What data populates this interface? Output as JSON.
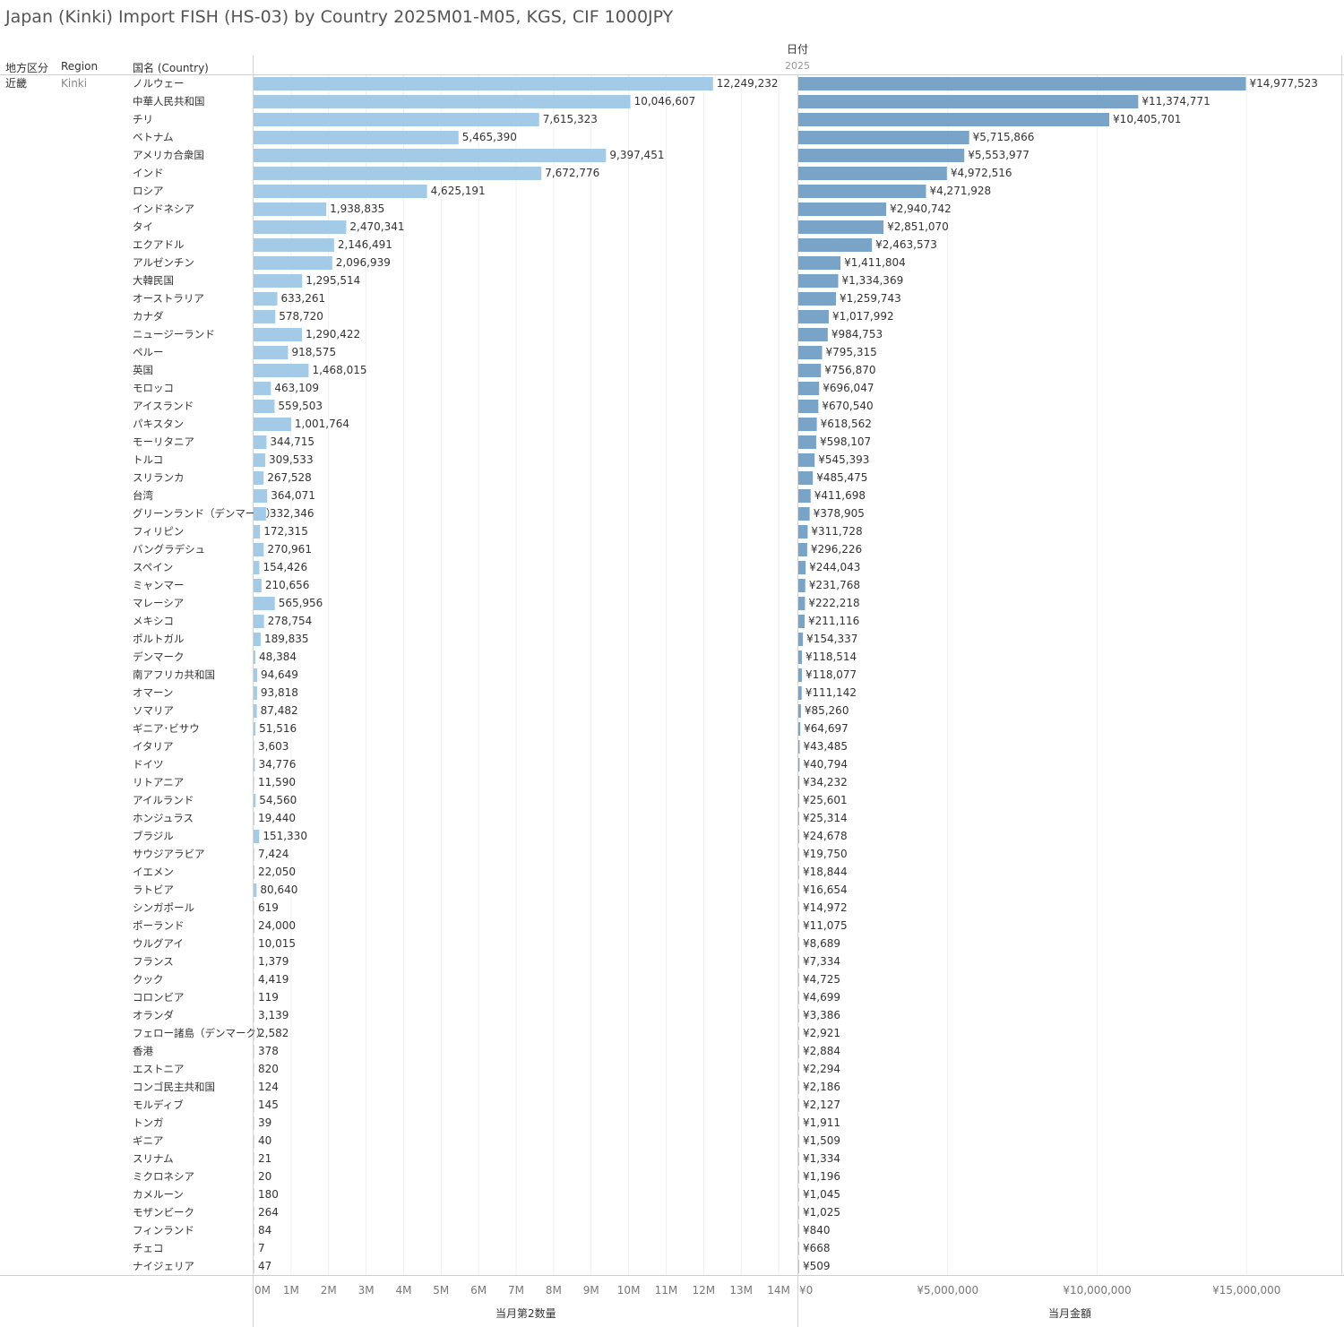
{
  "title": "Japan (Kinki) Import FISH (HS-03) by Country 2025M01-M05, KGS, CIF 1000JPY",
  "headers": {
    "date": "日付",
    "year": "2025",
    "col_region_jp": "地方区分",
    "col_region": "Region",
    "col_country": "国名 (Country)"
  },
  "row_group": {
    "region_jp": "近畿",
    "region": "Kinki"
  },
  "chart_data": [
    {
      "type": "bar",
      "orientation": "horizontal",
      "xlabel": "当月第2数量",
      "xlim": [
        0,
        14500000
      ],
      "ticks": [
        {
          "v": 0,
          "label": "0M"
        },
        {
          "v": 1000000,
          "label": "1M"
        },
        {
          "v": 2000000,
          "label": "2M"
        },
        {
          "v": 3000000,
          "label": "3M"
        },
        {
          "v": 4000000,
          "label": "4M"
        },
        {
          "v": 5000000,
          "label": "5M"
        },
        {
          "v": 6000000,
          "label": "6M"
        },
        {
          "v": 7000000,
          "label": "7M"
        },
        {
          "v": 8000000,
          "label": "8M"
        },
        {
          "v": 9000000,
          "label": "9M"
        },
        {
          "v": 10000000,
          "label": "10M"
        },
        {
          "v": 11000000,
          "label": "11M"
        },
        {
          "v": 12000000,
          "label": "12M"
        },
        {
          "v": 13000000,
          "label": "13M"
        },
        {
          "v": 14000000,
          "label": "14M"
        }
      ],
      "color": "#a3cbe8",
      "categories": [
        "ノルウェー",
        "中華人民共和国",
        "チリ",
        "ベトナム",
        "アメリカ合衆国",
        "インド",
        "ロシア",
        "インドネシア",
        "タイ",
        "エクアドル",
        "アルゼンチン",
        "大韓民国",
        "オーストラリア",
        "カナダ",
        "ニュージーランド",
        "ペルー",
        "英国",
        "モロッコ",
        "アイスランド",
        "パキスタン",
        "モーリタニア",
        "トルコ",
        "スリランカ",
        "台湾",
        "グリーンランド（デンマーク）",
        "フィリピン",
        "バングラデシュ",
        "スペイン",
        "ミャンマー",
        "マレーシア",
        "メキシコ",
        "ポルトガル",
        "デンマーク",
        "南アフリカ共和国",
        "オマーン",
        "ソマリア",
        "ギニア･ビサウ",
        "イタリア",
        "ドイツ",
        "リトアニア",
        "アイルランド",
        "ホンジュラス",
        "ブラジル",
        "サウジアラビア",
        "イエメン",
        "ラトビア",
        "シンガポール",
        "ポーランド",
        "ウルグアイ",
        "フランス",
        "クック",
        "コロンビア",
        "オランダ",
        "フェロー諸島（デンマーク）",
        "香港",
        "エストニア",
        "コンゴ民主共和国",
        "モルディブ",
        "トンガ",
        "ギニア",
        "スリナム",
        "ミクロネシア",
        "カメルーン",
        "モザンビーク",
        "フィンランド",
        "チェコ",
        "ナイジェリア"
      ],
      "values": [
        12249232,
        10046607,
        7615323,
        5465390,
        9397451,
        7672776,
        4625191,
        1938835,
        2470341,
        2146491,
        2096939,
        1295514,
        633261,
        578720,
        1290422,
        918575,
        1468015,
        463109,
        559503,
        1001764,
        344715,
        309533,
        267528,
        364071,
        332346,
        172315,
        270961,
        154426,
        210656,
        565956,
        278754,
        189835,
        48384,
        94649,
        93818,
        87482,
        51516,
        3603,
        34776,
        11590,
        54560,
        19440,
        151330,
        7424,
        22050,
        80640,
        619,
        24000,
        10015,
        1379,
        4419,
        119,
        3139,
        2582,
        378,
        820,
        124,
        145,
        39,
        40,
        21,
        20,
        180,
        264,
        84,
        7,
        47
      ],
      "labels": [
        "12,249,232",
        "10,046,607",
        "7,615,323",
        "5,465,390",
        "9,397,451",
        "7,672,776",
        "4,625,191",
        "1,938,835",
        "2,470,341",
        "2,146,491",
        "2,096,939",
        "1,295,514",
        "633,261",
        "578,720",
        "1,290,422",
        "918,575",
        "1,468,015",
        "463,109",
        "559,503",
        "1,001,764",
        "344,715",
        "309,533",
        "267,528",
        "364,071",
        "332,346",
        "172,315",
        "270,961",
        "154,426",
        "210,656",
        "565,956",
        "278,754",
        "189,835",
        "48,384",
        "94,649",
        "93,818",
        "87,482",
        "51,516",
        "3,603",
        "34,776",
        "11,590",
        "54,560",
        "19,440",
        "151,330",
        "7,424",
        "22,050",
        "80,640",
        "619",
        "24,000",
        "10,015",
        "1,379",
        "4,419",
        "119",
        "3,139",
        "2,582",
        "378",
        "820",
        "124",
        "145",
        "39",
        "40",
        "21",
        "20",
        "180",
        "264",
        "84",
        "7",
        "47"
      ]
    },
    {
      "type": "bar",
      "orientation": "horizontal",
      "xlabel": "当月金額",
      "xlim": [
        0,
        18200000
      ],
      "ticks": [
        {
          "v": 0,
          "label": "¥0"
        },
        {
          "v": 5000000,
          "label": "¥5,000,000"
        },
        {
          "v": 10000000,
          "label": "¥10,000,000"
        },
        {
          "v": 15000000,
          "label": "¥15,000,000"
        }
      ],
      "color": "#7aa3c8",
      "values": [
        14977523,
        11374771,
        10405701,
        5715866,
        5553977,
        4972516,
        4271928,
        2940742,
        2851070,
        2463573,
        1411804,
        1334369,
        1259743,
        1017992,
        984753,
        795315,
        756870,
        696047,
        670540,
        618562,
        598107,
        545393,
        485475,
        411698,
        378905,
        311728,
        296226,
        244043,
        231768,
        222218,
        211116,
        154337,
        118514,
        118077,
        111142,
        85260,
        64697,
        43485,
        40794,
        34232,
        25601,
        25314,
        24678,
        19750,
        18844,
        16654,
        14972,
        11075,
        8689,
        7334,
        4725,
        4699,
        3386,
        2921,
        2884,
        2294,
        2186,
        2127,
        1911,
        1509,
        1334,
        1196,
        1045,
        1025,
        840,
        668,
        509
      ],
      "labels": [
        "¥14,977,523",
        "¥11,374,771",
        "¥10,405,701",
        "¥5,715,866",
        "¥5,553,977",
        "¥4,972,516",
        "¥4,271,928",
        "¥2,940,742",
        "¥2,851,070",
        "¥2,463,573",
        "¥1,411,804",
        "¥1,334,369",
        "¥1,259,743",
        "¥1,017,992",
        "¥984,753",
        "¥795,315",
        "¥756,870",
        "¥696,047",
        "¥670,540",
        "¥618,562",
        "¥598,107",
        "¥545,393",
        "¥485,475",
        "¥411,698",
        "¥378,905",
        "¥311,728",
        "¥296,226",
        "¥244,043",
        "¥231,768",
        "¥222,218",
        "¥211,116",
        "¥154,337",
        "¥118,514",
        "¥118,077",
        "¥111,142",
        "¥85,260",
        "¥64,697",
        "¥43,485",
        "¥40,794",
        "¥34,232",
        "¥25,601",
        "¥25,314",
        "¥24,678",
        "¥19,750",
        "¥18,844",
        "¥16,654",
        "¥14,972",
        "¥11,075",
        "¥8,689",
        "¥7,334",
        "¥4,725",
        "¥4,699",
        "¥3,386",
        "¥2,921",
        "¥2,884",
        "¥2,294",
        "¥2,186",
        "¥2,127",
        "¥1,911",
        "¥1,509",
        "¥1,334",
        "¥1,196",
        "¥1,045",
        "¥1,025",
        "¥840",
        "¥668",
        "¥509"
      ]
    }
  ]
}
